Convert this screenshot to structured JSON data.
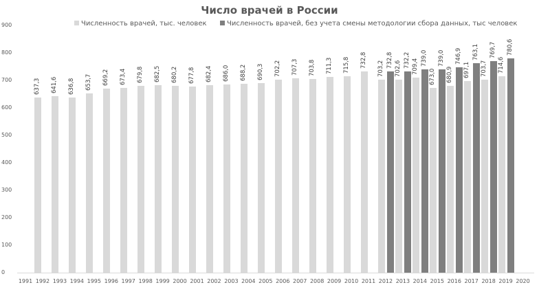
{
  "chart_data": {
    "type": "bar",
    "title": "Число врачей в России",
    "xlabel": "",
    "ylabel": "",
    "ylim": [
      0,
      900
    ],
    "yticks": [
      0,
      100,
      200,
      300,
      400,
      500,
      600,
      700,
      800,
      900
    ],
    "grid": false,
    "legend_position": "top",
    "categories": [
      "1991",
      "1992",
      "1993",
      "1994",
      "1995",
      "1996",
      "1997",
      "1998",
      "1999",
      "2000",
      "2001",
      "2002",
      "2003",
      "2004",
      "2005",
      "2006",
      "2007",
      "2008",
      "2009",
      "2010",
      "2011",
      "2012",
      "2013",
      "2014",
      "2015",
      "2016",
      "2017",
      "2018",
      "2019",
      "2020"
    ],
    "series": [
      {
        "name": "Численность врачей, тыс. человек",
        "color": "#d9d9d9",
        "values": [
          637.3,
          641.6,
          636.8,
          653.7,
          669.2,
          673.4,
          679.8,
          682.5,
          680.2,
          677.8,
          682.4,
          686.0,
          688.2,
          690.3,
          702.2,
          707.3,
          703.8,
          711.3,
          715.8,
          732.8,
          703.2,
          702.6,
          709.4,
          673.0,
          680.9,
          697.1,
          703.7,
          714.6
        ],
        "value_labels": [
          "637,3",
          "641,6",
          "636,8",
          "653,7",
          "669,2",
          "673,4",
          "679,8",
          "682,5",
          "680,2",
          "677,8",
          "682,4",
          "686,0",
          "688,2",
          "690,3",
          "702,2",
          "707,3",
          "703,8",
          "711,3",
          "715,8",
          "732,8",
          "703,2",
          "702,6",
          "709,4",
          "673,0",
          "680,9",
          "697,1",
          "703,7",
          "714,6"
        ],
        "slot_start_index": 0
      },
      {
        "name": "Численность врачей, без учета смены методологии сбора данных, тыс человек",
        "color": "#7f7f7f",
        "values": [
          732.8,
          732.2,
          739.0,
          739.0,
          746.9,
          763.1,
          769.7,
          780.6
        ],
        "value_labels": [
          "732,8",
          "732,2",
          "739,0",
          "739,0",
          "746,9",
          "763,1",
          "769,7",
          "780,6"
        ],
        "slot_start_index": 20
      }
    ]
  },
  "legend": {
    "items": [
      {
        "label": "Численность врачей, тыс. человек",
        "color": "#d9d9d9"
      },
      {
        "label": "Численность врачей, без учета смены методологии сбора данных, тыс человек",
        "color": "#7f7f7f"
      }
    ]
  }
}
